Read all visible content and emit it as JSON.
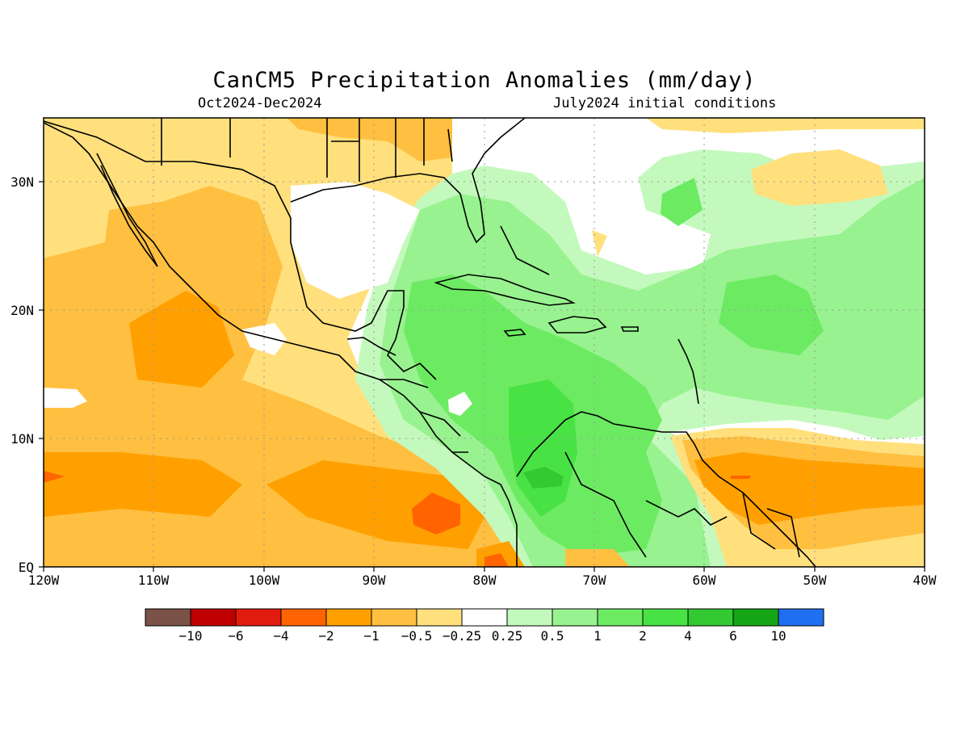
{
  "title": "CanCM5 Precipitation Anomalies (mm/day)",
  "period": "Oct2024-Dec2024",
  "init": "July2024 initial conditions",
  "axes": {
    "lon_labels": [
      "120W",
      "110W",
      "100W",
      "90W",
      "80W",
      "70W",
      "60W",
      "50W",
      "40W"
    ],
    "lat_labels": [
      "EQ",
      "10N",
      "20N",
      "30N"
    ]
  },
  "colorbar": {
    "colors": [
      "#7a5248",
      "#c00000",
      "#e21b0f",
      "#ff6400",
      "#ffa000",
      "#ffbf40",
      "#ffe07d",
      "#ffffff",
      "#c4f9bd",
      "#98f28f",
      "#6ceb62",
      "#48e244",
      "#33c933",
      "#15a615",
      "#1f6ff0"
    ],
    "labels": [
      "-10",
      "-6",
      "-4",
      "-2",
      "-1",
      "-0.5",
      "-0.25",
      "0.25",
      "0.5",
      "1",
      "2",
      "4",
      "6",
      "10"
    ]
  }
}
